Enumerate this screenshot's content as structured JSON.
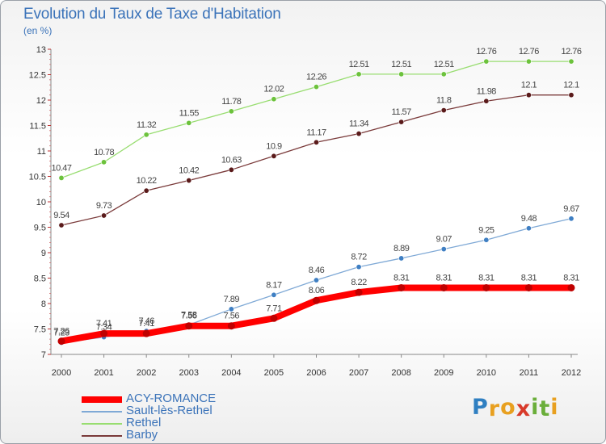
{
  "title": "Evolution du Taux de Taxe d'Habitation",
  "unit": "(en %)",
  "brand": {
    "letters": [
      {
        "ch": "P",
        "color": "#2f7fc1"
      },
      {
        "ch": "r",
        "color": "#e8a020"
      },
      {
        "ch": "o",
        "color": "#e8a020"
      },
      {
        "ch": "x",
        "color": "#d83a2a"
      },
      {
        "ch": "i",
        "color": "#6aae3a"
      },
      {
        "ch": "t",
        "color": "#6aae3a"
      },
      {
        "ch": "i",
        "color": "#e8a020"
      }
    ]
  },
  "chart_data": {
    "type": "line",
    "title": "Evolution du Taux de Taxe d'Habitation",
    "ylabel": "(en %)",
    "x": [
      "2000",
      "2001",
      "2002",
      "2003",
      "2004",
      "2005",
      "2006",
      "2007",
      "2008",
      "2009",
      "2010",
      "2011",
      "2012"
    ],
    "ylim": [
      7,
      13
    ],
    "yticks": [
      "7",
      "7.5",
      "8",
      "8.5",
      "9",
      "9.5",
      "10",
      "10.5",
      "11",
      "11.5",
      "12",
      "12.5",
      "13"
    ],
    "grid": false,
    "legend_position": "bottom-left",
    "series": [
      {
        "name": "ACY-ROMANCE",
        "color": "#ff0000",
        "dot_color": "#c00000",
        "bold": true,
        "values": [
          7.26,
          7.41,
          7.41,
          7.56,
          7.56,
          7.71,
          8.06,
          8.22,
          8.31,
          8.31,
          8.31,
          8.31,
          8.31
        ],
        "labels": [
          "7.26",
          "7.41",
          "7.41",
          "7.56",
          "7.56",
          "7.71",
          "8.06",
          "8.22",
          "8.31",
          "8.31",
          "8.31",
          "8.31",
          "8.31"
        ]
      },
      {
        "name": "Sault-lès-Rethel",
        "color": "#7fa9d6",
        "dot_color": "#3f7fc3",
        "bold": false,
        "values": [
          7.23,
          7.34,
          7.46,
          7.58,
          7.89,
          8.17,
          8.46,
          8.72,
          8.89,
          9.07,
          9.25,
          9.48,
          9.67
        ],
        "labels": [
          "7.23",
          "7.34",
          "7.46",
          "7.58",
          "7.89",
          "8.17",
          "8.46",
          "8.72",
          "8.89",
          "9.07",
          "9.25",
          "9.48",
          "9.67"
        ]
      },
      {
        "name": "Rethel",
        "color": "#98dd70",
        "dot_color": "#6cc23c",
        "bold": false,
        "values": [
          10.47,
          10.78,
          11.32,
          11.55,
          11.78,
          12.02,
          12.26,
          12.51,
          12.51,
          12.51,
          12.76,
          12.76,
          12.76
        ],
        "labels": [
          "10.47",
          "10.78",
          "11.32",
          "11.55",
          "11.78",
          "12.02",
          "12.26",
          "12.51",
          "12.51",
          "12.51",
          "12.76",
          "12.76",
          "12.76"
        ]
      },
      {
        "name": "Barby",
        "color": "#7a3a3a",
        "dot_color": "#5a1a1a",
        "bold": false,
        "values": [
          9.54,
          9.73,
          10.22,
          10.42,
          10.63,
          10.9,
          11.17,
          11.34,
          11.57,
          11.8,
          11.98,
          12.1,
          12.1
        ],
        "labels": [
          "9.54",
          "9.73",
          "10.22",
          "10.42",
          "10.63",
          "10.9",
          "11.17",
          "11.34",
          "11.57",
          "11.8",
          "11.98",
          "12.1",
          "12.1"
        ]
      }
    ]
  }
}
